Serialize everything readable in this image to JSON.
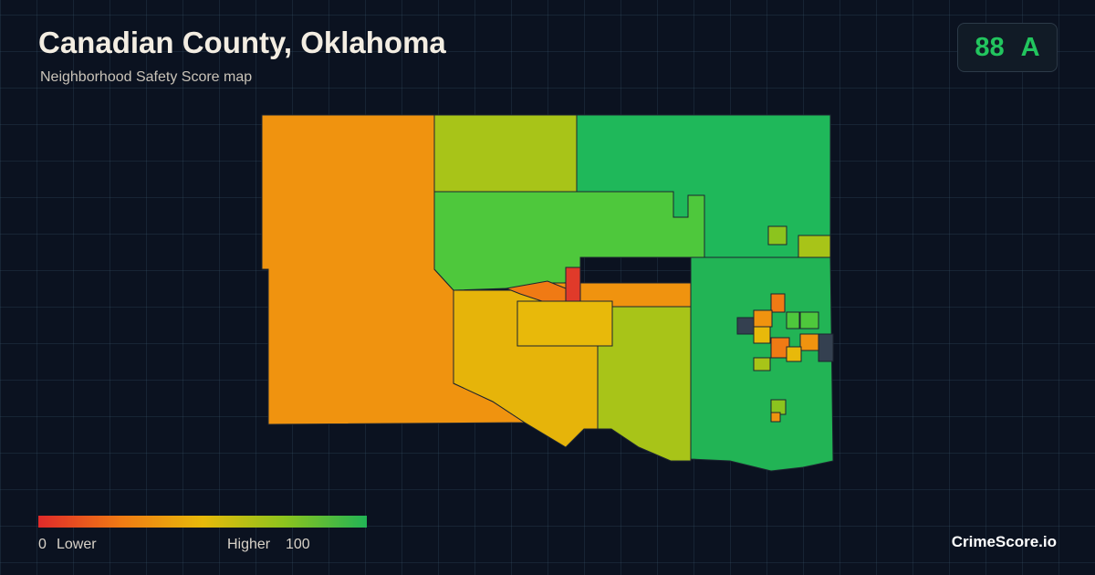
{
  "header": {
    "title": "Canadian County, Oklahoma",
    "subtitle": "Neighborhood Safety Score map"
  },
  "score": {
    "value": 88,
    "grade": "A"
  },
  "legend": {
    "min": 0,
    "min_label": "Lower",
    "max_label": "Higher",
    "max": 100
  },
  "brand": "CrimeScore.io"
}
